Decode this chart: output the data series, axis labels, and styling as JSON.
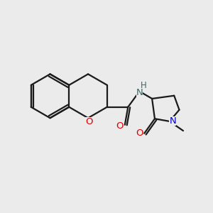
{
  "bg_color": "#ebebeb",
  "bond_color": "#1a1a1a",
  "O_color": "#dd0000",
  "N_color": "#0000cc",
  "NH_color": "#336b6b",
  "line_width": 1.6,
  "font_size": 9.5,
  "fig_size": [
    3.0,
    3.0
  ],
  "dpi": 100,
  "xlim": [
    0,
    10
  ],
  "ylim": [
    0,
    10
  ]
}
